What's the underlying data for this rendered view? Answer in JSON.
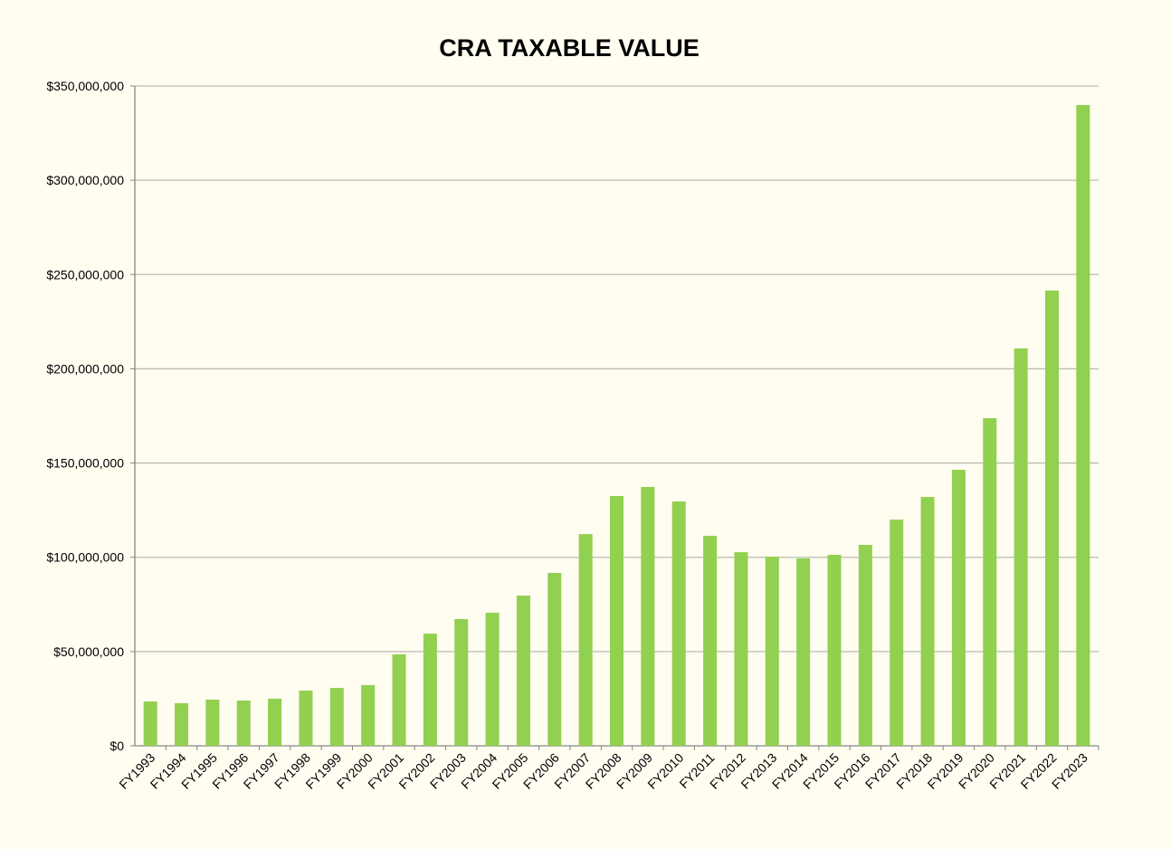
{
  "chart_data": {
    "type": "bar",
    "title": "CRA TAXABLE VALUE",
    "xlabel": "",
    "ylabel": "",
    "ylim": [
      0,
      350000000
    ],
    "grid": true,
    "bar_color": "#92d050",
    "yticks": [
      "$0",
      "$50,000,000",
      "$100,000,000",
      "$150,000,000",
      "$200,000,000",
      "$250,000,000",
      "$300,000,000",
      "$350,000,000"
    ],
    "categories": [
      "FY1993",
      "FY1994",
      "FY1995",
      "FY1996",
      "FY1997",
      "FY1998",
      "FY1999",
      "FY2000",
      "FY2001",
      "FY2002",
      "FY2003",
      "FY2004",
      "FY2005",
      "FY2006",
      "FY2007",
      "FY2008",
      "FY2009",
      "FY2010",
      "FY2011",
      "FY2012",
      "FY2013",
      "FY2014",
      "FY2015",
      "FY2016",
      "FY2017",
      "FY2018",
      "FY2019",
      "FY2020",
      "FY2021",
      "FY2022",
      "FY2023"
    ],
    "values": [
      23500000,
      22600000,
      24500000,
      24000000,
      25000000,
      29300000,
      30700000,
      32200000,
      48500000,
      59500000,
      67200000,
      70600000,
      79700000,
      91700000,
      112300000,
      132500000,
      137300000,
      129600000,
      111400000,
      102700000,
      100300000,
      99400000,
      101300000,
      106600000,
      120000000,
      132000000,
      146400000,
      173800000,
      210800000,
      241500000,
      339900000
    ]
  }
}
